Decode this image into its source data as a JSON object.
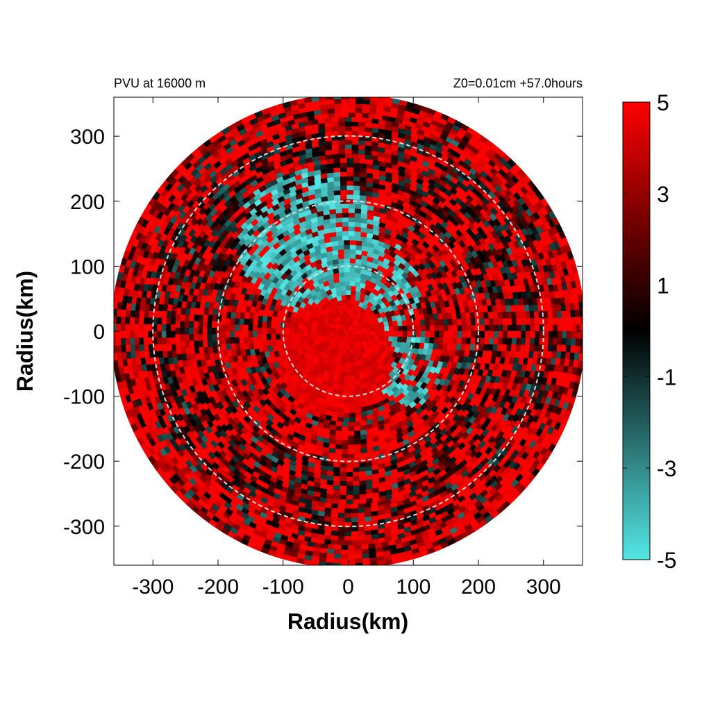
{
  "chart_data": {
    "type": "heatmap",
    "projection": "polar-disk",
    "header_left": "PVU at 16000 m",
    "header_right": "Z0=0.01cm  +57.0hours",
    "xlabel": "Radius(km)",
    "ylabel": "Radius(km)",
    "xlim": [
      -360,
      360
    ],
    "ylim": [
      -360,
      360
    ],
    "disk_radius": 360,
    "x_ticks": [
      -300,
      -200,
      -100,
      0,
      100,
      200,
      300
    ],
    "y_ticks": [
      300,
      200,
      100,
      0,
      -100,
      -200,
      -300
    ],
    "range_rings": [
      100,
      200,
      300
    ],
    "grid": false,
    "legend": "colorbar-right",
    "colorbar": {
      "range": [
        -5,
        5
      ],
      "ticks": [
        5,
        3,
        1,
        -1,
        -3,
        -5
      ],
      "colors": [
        {
          "value": -5,
          "color": "#55E6E6"
        },
        {
          "value": 0,
          "color": "#000000"
        },
        {
          "value": 2.5,
          "color": "#7A0000"
        },
        {
          "value": 5,
          "color": "#FF0000"
        }
      ]
    }
  }
}
